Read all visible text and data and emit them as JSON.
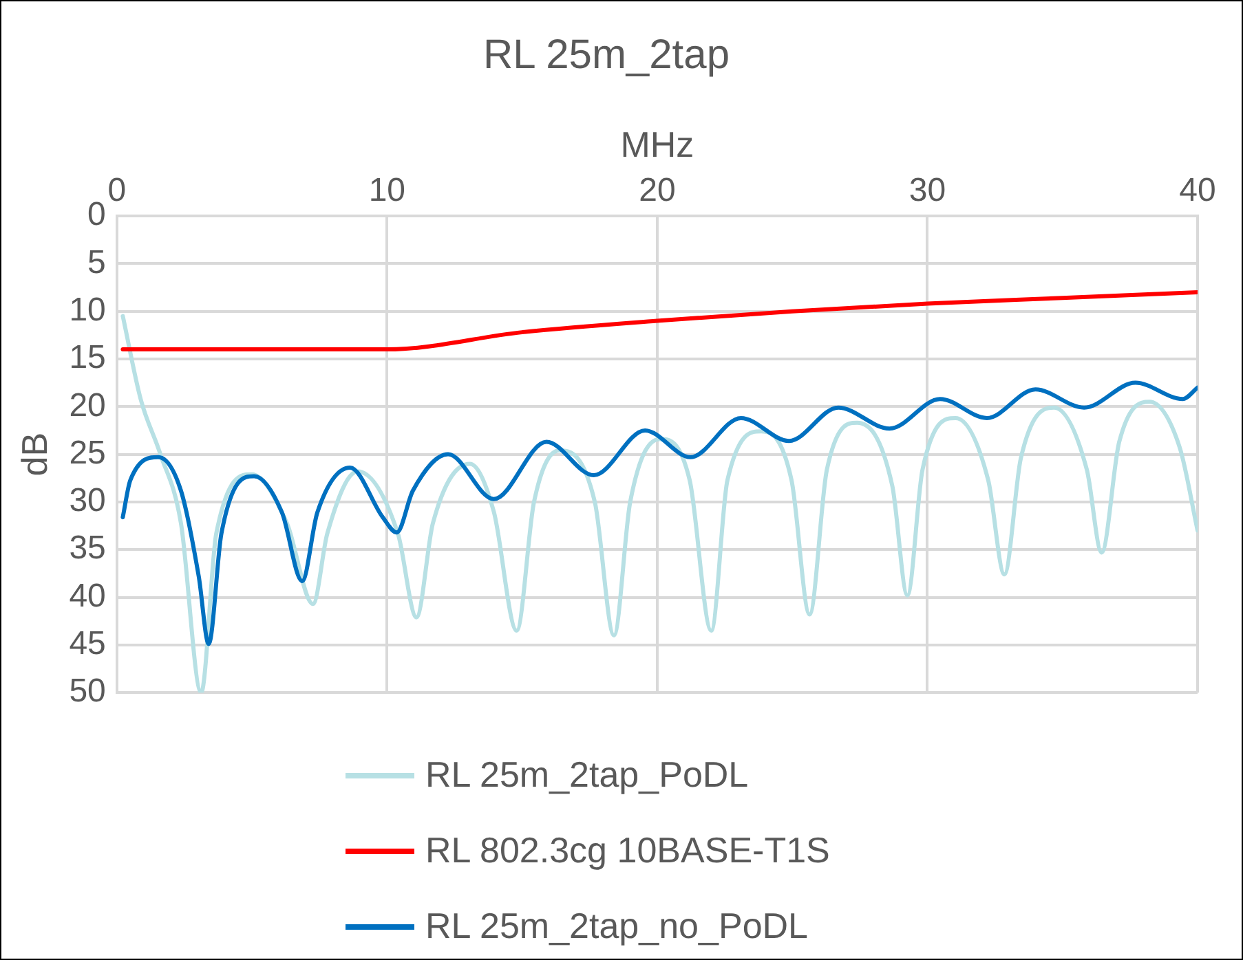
{
  "chart_data": {
    "type": "line",
    "title": "RL 25m_2tap",
    "xlabel": "MHz",
    "ylabel": "dB",
    "xlim": [
      0,
      40
    ],
    "xticks": [
      0,
      10,
      20,
      30,
      40
    ],
    "ylim": [
      50,
      0
    ],
    "yticks": [
      0,
      5,
      10,
      15,
      20,
      25,
      30,
      35,
      40,
      45,
      50
    ],
    "grid": true,
    "legend": "bottom",
    "marker": "none",
    "line_style": "solid",
    "series": [
      {
        "name": "RL 25m_2tap_PoDL",
        "color": "#b7e0e4",
        "x": [
          0.22,
          0.88,
          1.6,
          2.37,
          3.12,
          3.68,
          4.99,
          6.29,
          7.26,
          7.79,
          8.91,
          10.4,
          11.09,
          11.7,
          13.06,
          13.95,
          14.8,
          15.44,
          16.38,
          17.69,
          18.4,
          19.0,
          20.1,
          21.2,
          22.0,
          22.6,
          23.85,
          24.97,
          25.64,
          26.28,
          27.4,
          28.7,
          29.26,
          29.82,
          31.04,
          32.25,
          32.85,
          33.46,
          34.68,
          35.9,
          36.45,
          37.1,
          38.22,
          39.34,
          40
        ],
        "values": [
          10.5,
          19.2,
          24.9,
          32.2,
          50,
          33.3,
          27.1,
          32.2,
          40.7,
          33.3,
          26.8,
          33.3,
          42.1,
          32.2,
          26,
          31,
          43.5,
          30,
          24.6,
          30,
          44,
          30,
          23.4,
          27.7,
          43.5,
          27.7,
          22.6,
          27.7,
          41.8,
          26.6,
          21.7,
          28.3,
          39.8,
          26.6,
          21.2,
          27.7,
          37.6,
          25.4,
          20.1,
          26.6,
          35.3,
          23.7,
          19.5,
          24.3,
          33
        ]
      },
      {
        "name": "RL 802.3cg 10BASE-T1S",
        "color": "#ff0000",
        "x": [
          0.22,
          10,
          15,
          20,
          25,
          30,
          35,
          40
        ],
        "values": [
          14,
          14,
          12.2,
          11,
          10,
          9.2,
          8.6,
          8
        ]
      },
      {
        "name": "RL 25m_2tap_no_PoDL",
        "color": "#0070c0",
        "x": [
          0.22,
          0.5,
          1.53,
          2.37,
          3.03,
          3.4,
          3.87,
          5.08,
          6.11,
          6.86,
          7.42,
          8.63,
          9.84,
          10.36,
          10.96,
          12.26,
          13.95,
          15.9,
          17.65,
          19.55,
          21.23,
          23.1,
          24.88,
          26.7,
          28.6,
          30.47,
          32.2,
          34.0,
          35.8,
          37.7,
          39.45,
          40
        ],
        "values": [
          31.6,
          27.7,
          25.3,
          28.8,
          37.8,
          44.9,
          33.3,
          27.3,
          31.1,
          38.3,
          31.1,
          26.4,
          31.6,
          33.2,
          28.8,
          25,
          29.7,
          23.7,
          27.2,
          22.5,
          25.3,
          21.2,
          23.6,
          20.1,
          22.3,
          19.2,
          21.2,
          18.2,
          20.1,
          17.5,
          19.2,
          18
        ]
      }
    ]
  }
}
